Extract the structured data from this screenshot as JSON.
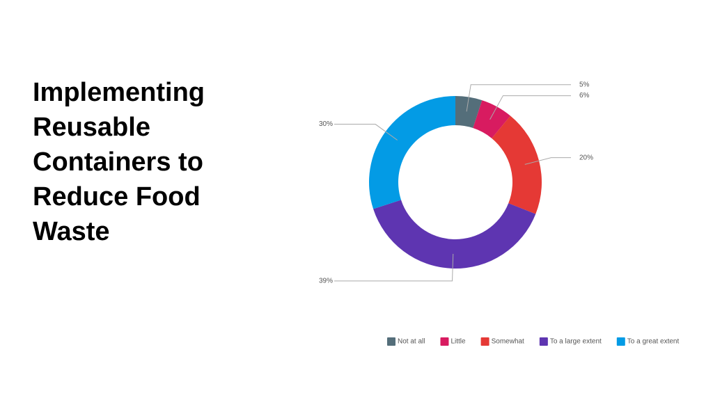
{
  "chart_data": {
    "type": "donut",
    "title": "Implementing Reusable Containers to Reduce Food Waste",
    "categories": [
      "Not at all",
      "Little",
      "Somewhat",
      "To a large extent",
      "To a great extent"
    ],
    "values": [
      5,
      6,
      20,
      39,
      30
    ],
    "value_labels": [
      "5%",
      "6%",
      "20%",
      "39%",
      "30%"
    ],
    "colors": [
      "#546e7a",
      "#d81b60",
      "#e53935",
      "#5e35b1",
      "#039be5"
    ],
    "legend": "bottom-right"
  }
}
